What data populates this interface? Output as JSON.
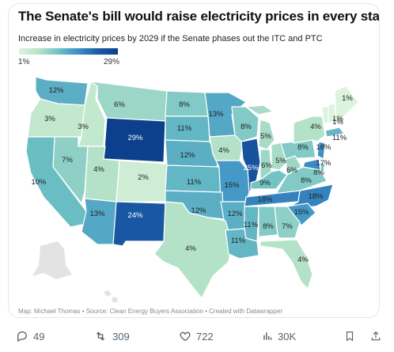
{
  "chart": {
    "title": "The Senate's bill would raise electricity prices in every state",
    "subtitle": "Increase in electricity prices by 2029 if the Senate phases out the ITC and PTC",
    "legend_min": "1%",
    "legend_max": "29%",
    "credit": "Map: Michael Thomas • Source: Clean Energy Buyers Association • Created with Datawrapper"
  },
  "chart_data": {
    "type": "choropleth-map",
    "unit": "%",
    "color_scale": {
      "min": 1,
      "max": 29,
      "low_color": "#dcf3dc",
      "high_color": "#0c3f8c"
    },
    "states": [
      {
        "state": "WA",
        "value": 12
      },
      {
        "state": "OR",
        "value": 3
      },
      {
        "state": "ID",
        "value": 3
      },
      {
        "state": "MT",
        "value": 6
      },
      {
        "state": "ND",
        "value": 8
      },
      {
        "state": "MN",
        "value": 13
      },
      {
        "state": "WI",
        "value": 8
      },
      {
        "state": "MI",
        "value": 5
      },
      {
        "state": "SD",
        "value": 11
      },
      {
        "state": "WY",
        "value": 29
      },
      {
        "state": "NV",
        "value": 7
      },
      {
        "state": "CA",
        "value": 10
      },
      {
        "state": "UT",
        "value": 4
      },
      {
        "state": "CO",
        "value": 2
      },
      {
        "state": "NE",
        "value": 12
      },
      {
        "state": "IA",
        "value": 4
      },
      {
        "state": "IL",
        "value": 25
      },
      {
        "state": "IN",
        "value": 6
      },
      {
        "state": "OH",
        "value": 5
      },
      {
        "state": "PA",
        "value": 8
      },
      {
        "state": "NY",
        "value": 4
      },
      {
        "state": "VT",
        "value": 1
      },
      {
        "state": "NH",
        "value": 1
      },
      {
        "state": "ME",
        "value": 1
      },
      {
        "state": "MA",
        "value": 11
      },
      {
        "state": "NJ",
        "value": 16
      },
      {
        "state": "MD",
        "value": 17
      },
      {
        "state": "DE",
        "value": 8
      },
      {
        "state": "WV",
        "value": 6
      },
      {
        "state": "VA",
        "value": 8
      },
      {
        "state": "KY",
        "value": 9
      },
      {
        "state": "KS",
        "value": 11
      },
      {
        "state": "MO",
        "value": 15
      },
      {
        "state": "AZ",
        "value": 13
      },
      {
        "state": "NM",
        "value": 24
      },
      {
        "state": "OK",
        "value": 12
      },
      {
        "state": "AR",
        "value": 12
      },
      {
        "state": "TN",
        "value": 18
      },
      {
        "state": "NC",
        "value": 18
      },
      {
        "state": "SC",
        "value": 15
      },
      {
        "state": "TX",
        "value": 4
      },
      {
        "state": "LA",
        "value": 11
      },
      {
        "state": "MS",
        "value": 11
      },
      {
        "state": "AL",
        "value": 8
      },
      {
        "state": "GA",
        "value": 7
      },
      {
        "state": "FL",
        "value": 4
      }
    ]
  },
  "actions": {
    "replies": "49",
    "reposts": "309",
    "likes": "722",
    "views": "30K"
  }
}
